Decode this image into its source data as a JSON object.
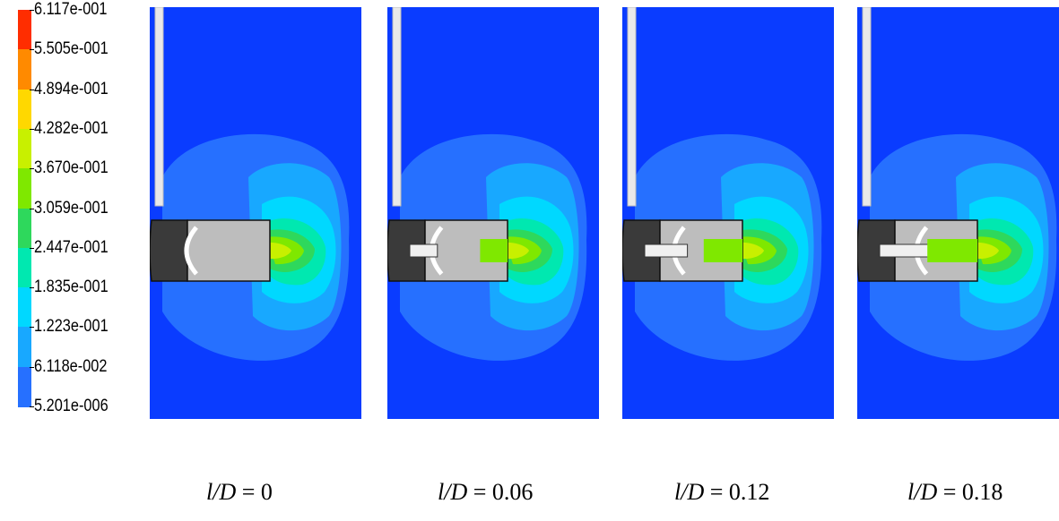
{
  "legend": {
    "values": [
      "6.117e-001",
      "5.505e-001",
      "4.894e-001",
      "4.282e-001",
      "3.670e-001",
      "3.059e-001",
      "2.447e-001",
      "1.835e-001",
      "1.223e-001",
      "6.118e-002",
      "5.201e-006"
    ],
    "colors": [
      "#ff2d00",
      "#ff8a00",
      "#ffd800",
      "#c8f000",
      "#7fe800",
      "#2ed85c",
      "#00e8b0",
      "#00d8ff",
      "#18a8ff",
      "#2670ff",
      "#0a3cff"
    ]
  },
  "panels": [
    {
      "caption_var": "l/D",
      "caption_val": "= 0",
      "lD": 0
    },
    {
      "caption_var": "l/D",
      "caption_val": "= 0.06",
      "lD": 0.06
    },
    {
      "caption_var": "l/D",
      "caption_val": "= 0.12",
      "lD": 0.12
    },
    {
      "caption_var": "l/D",
      "caption_val": "= 0.18",
      "lD": 0.18
    }
  ]
}
